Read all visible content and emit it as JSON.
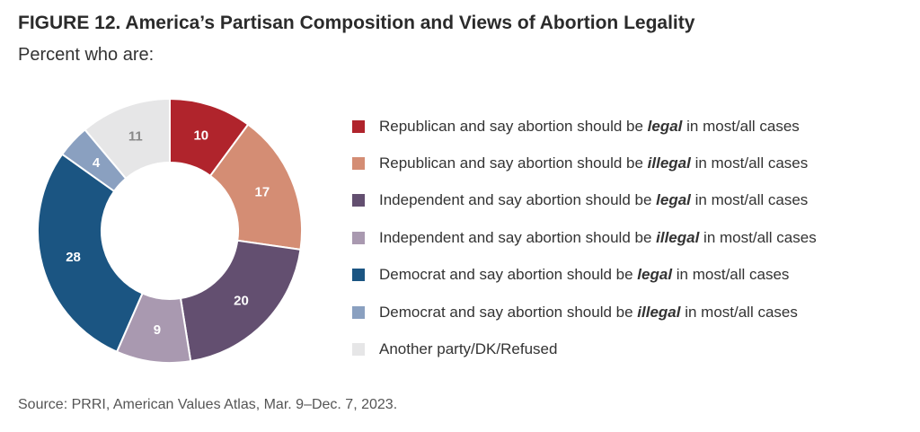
{
  "figure": {
    "title": "FIGURE 12. America’s Partisan Composition and Views of Abortion Legality",
    "subtitle": "Percent who are:",
    "source": "Source: PRRI, American Values Atlas, Mar. 9–Dec. 7, 2023."
  },
  "chart_data": {
    "type": "pie",
    "variant": "donut",
    "title": "FIGURE 12. America’s Partisan Composition and Views of Abortion Legality",
    "subtitle": "Percent who are:",
    "legend_position": "right",
    "slices": [
      {
        "label": "Republican and say abortion should be legal in most/all cases",
        "value": 10,
        "color": "#b0242c",
        "label_color": "#ffffff",
        "legend": {
          "before": "Republican and say abortion should be ",
          "emph": "legal",
          "after": " in most/all cases"
        }
      },
      {
        "label": "Republican and say abortion should be illegal in most/all cases",
        "value": 17,
        "color": "#d48d74",
        "label_color": "#ffffff",
        "legend": {
          "before": "Republican and say abortion should be ",
          "emph": "illegal",
          "after": " in most/all cases"
        }
      },
      {
        "label": "Independent and say abortion should be legal in most/all cases",
        "value": 20,
        "color": "#634f70",
        "label_color": "#ffffff",
        "legend": {
          "before": "Independent and say abortion should be ",
          "emph": "legal",
          "after": " in most/all cases"
        }
      },
      {
        "label": "Independent and say abortion should be illegal in most/all cases",
        "value": 9,
        "color": "#a999b0",
        "label_color": "#ffffff",
        "legend": {
          "before": "Independent and say abortion should be ",
          "emph": "illegal",
          "after": " in most/all cases"
        }
      },
      {
        "label": "Democrat and say abortion should be legal in most/all cases",
        "value": 28,
        "color": "#1b5582",
        "label_color": "#ffffff",
        "legend": {
          "before": "Democrat and say abortion should be ",
          "emph": "legal",
          "after": " in most/all cases"
        }
      },
      {
        "label": "Democrat and say abortion should be illegal in most/all cases",
        "value": 4,
        "color": "#8aa0c0",
        "label_color": "#ffffff",
        "legend": {
          "before": "Democrat and say abortion should be ",
          "emph": "illegal",
          "after": " in most/all cases"
        }
      },
      {
        "label": "Another party/DK/Refused",
        "value": 11,
        "color": "#e6e6e7",
        "label_color": "#888888",
        "legend": {
          "before": "Another party/DK/Refused",
          "emph": "",
          "after": ""
        }
      }
    ]
  }
}
